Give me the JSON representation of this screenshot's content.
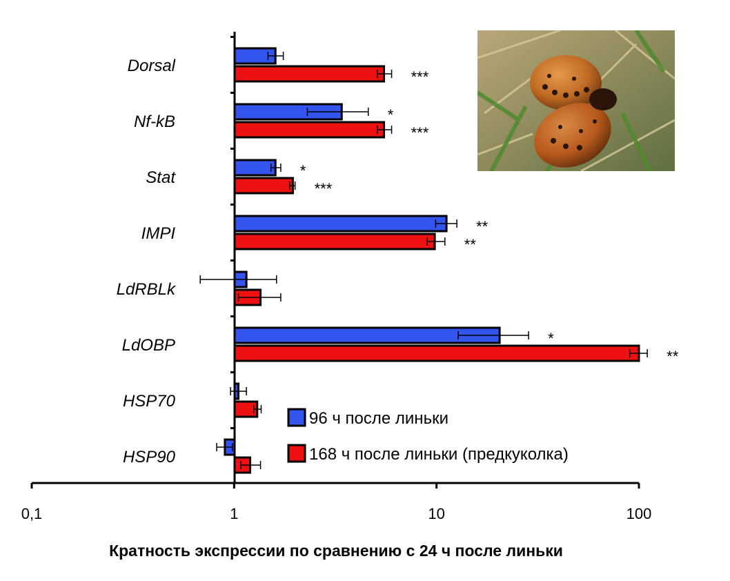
{
  "chart_data": {
    "type": "bar",
    "orientation": "horizontal",
    "x_scale": "log",
    "categories": [
      "Dorsal",
      "Nf-kB",
      "Stat",
      "IMPI",
      "LdRBLk",
      "LdOBP",
      "HSP70",
      "HSP90"
    ],
    "series": [
      {
        "name": "96 ч после линьки",
        "color": "#3355ee",
        "values": [
          1.6,
          3.4,
          1.6,
          11.2,
          1.15,
          20.5,
          1.05,
          0.9
        ],
        "err_low": [
          1.47,
          2.3,
          1.52,
          9.9,
          0.68,
          12.8,
          0.96,
          0.82
        ],
        "err_high": [
          1.75,
          4.6,
          1.7,
          12.6,
          1.62,
          28.5,
          1.15,
          0.98
        ],
        "significance": [
          "",
          "*",
          "*",
          "**",
          "",
          "*",
          "",
          ""
        ]
      },
      {
        "name": "168 ч после линьки (предкуколка)",
        "color": "#ee1111",
        "values": [
          5.5,
          5.5,
          1.95,
          9.8,
          1.35,
          100,
          1.3,
          1.2
        ],
        "err_low": [
          5.1,
          5.1,
          1.88,
          9.0,
          1.05,
          90,
          1.25,
          1.08
        ],
        "err_high": [
          6.0,
          6.0,
          2.0,
          11.0,
          1.7,
          110,
          1.36,
          1.35
        ],
        "significance": [
          "***",
          "***",
          "***",
          "**",
          "",
          "**",
          "",
          ""
        ]
      }
    ],
    "xlabel": "Кратность экспрессии по сравнению с 24 ч после линьки",
    "ylabel": "",
    "xlim": [
      0.1,
      100
    ],
    "xticks": [
      0.1,
      1,
      10,
      100
    ],
    "xtick_labels": [
      "0,1",
      "1",
      "10",
      "100"
    ],
    "legend_position": "bottom-right",
    "grid": false,
    "inset_image": "Colorado potato beetle larvae on grass"
  }
}
